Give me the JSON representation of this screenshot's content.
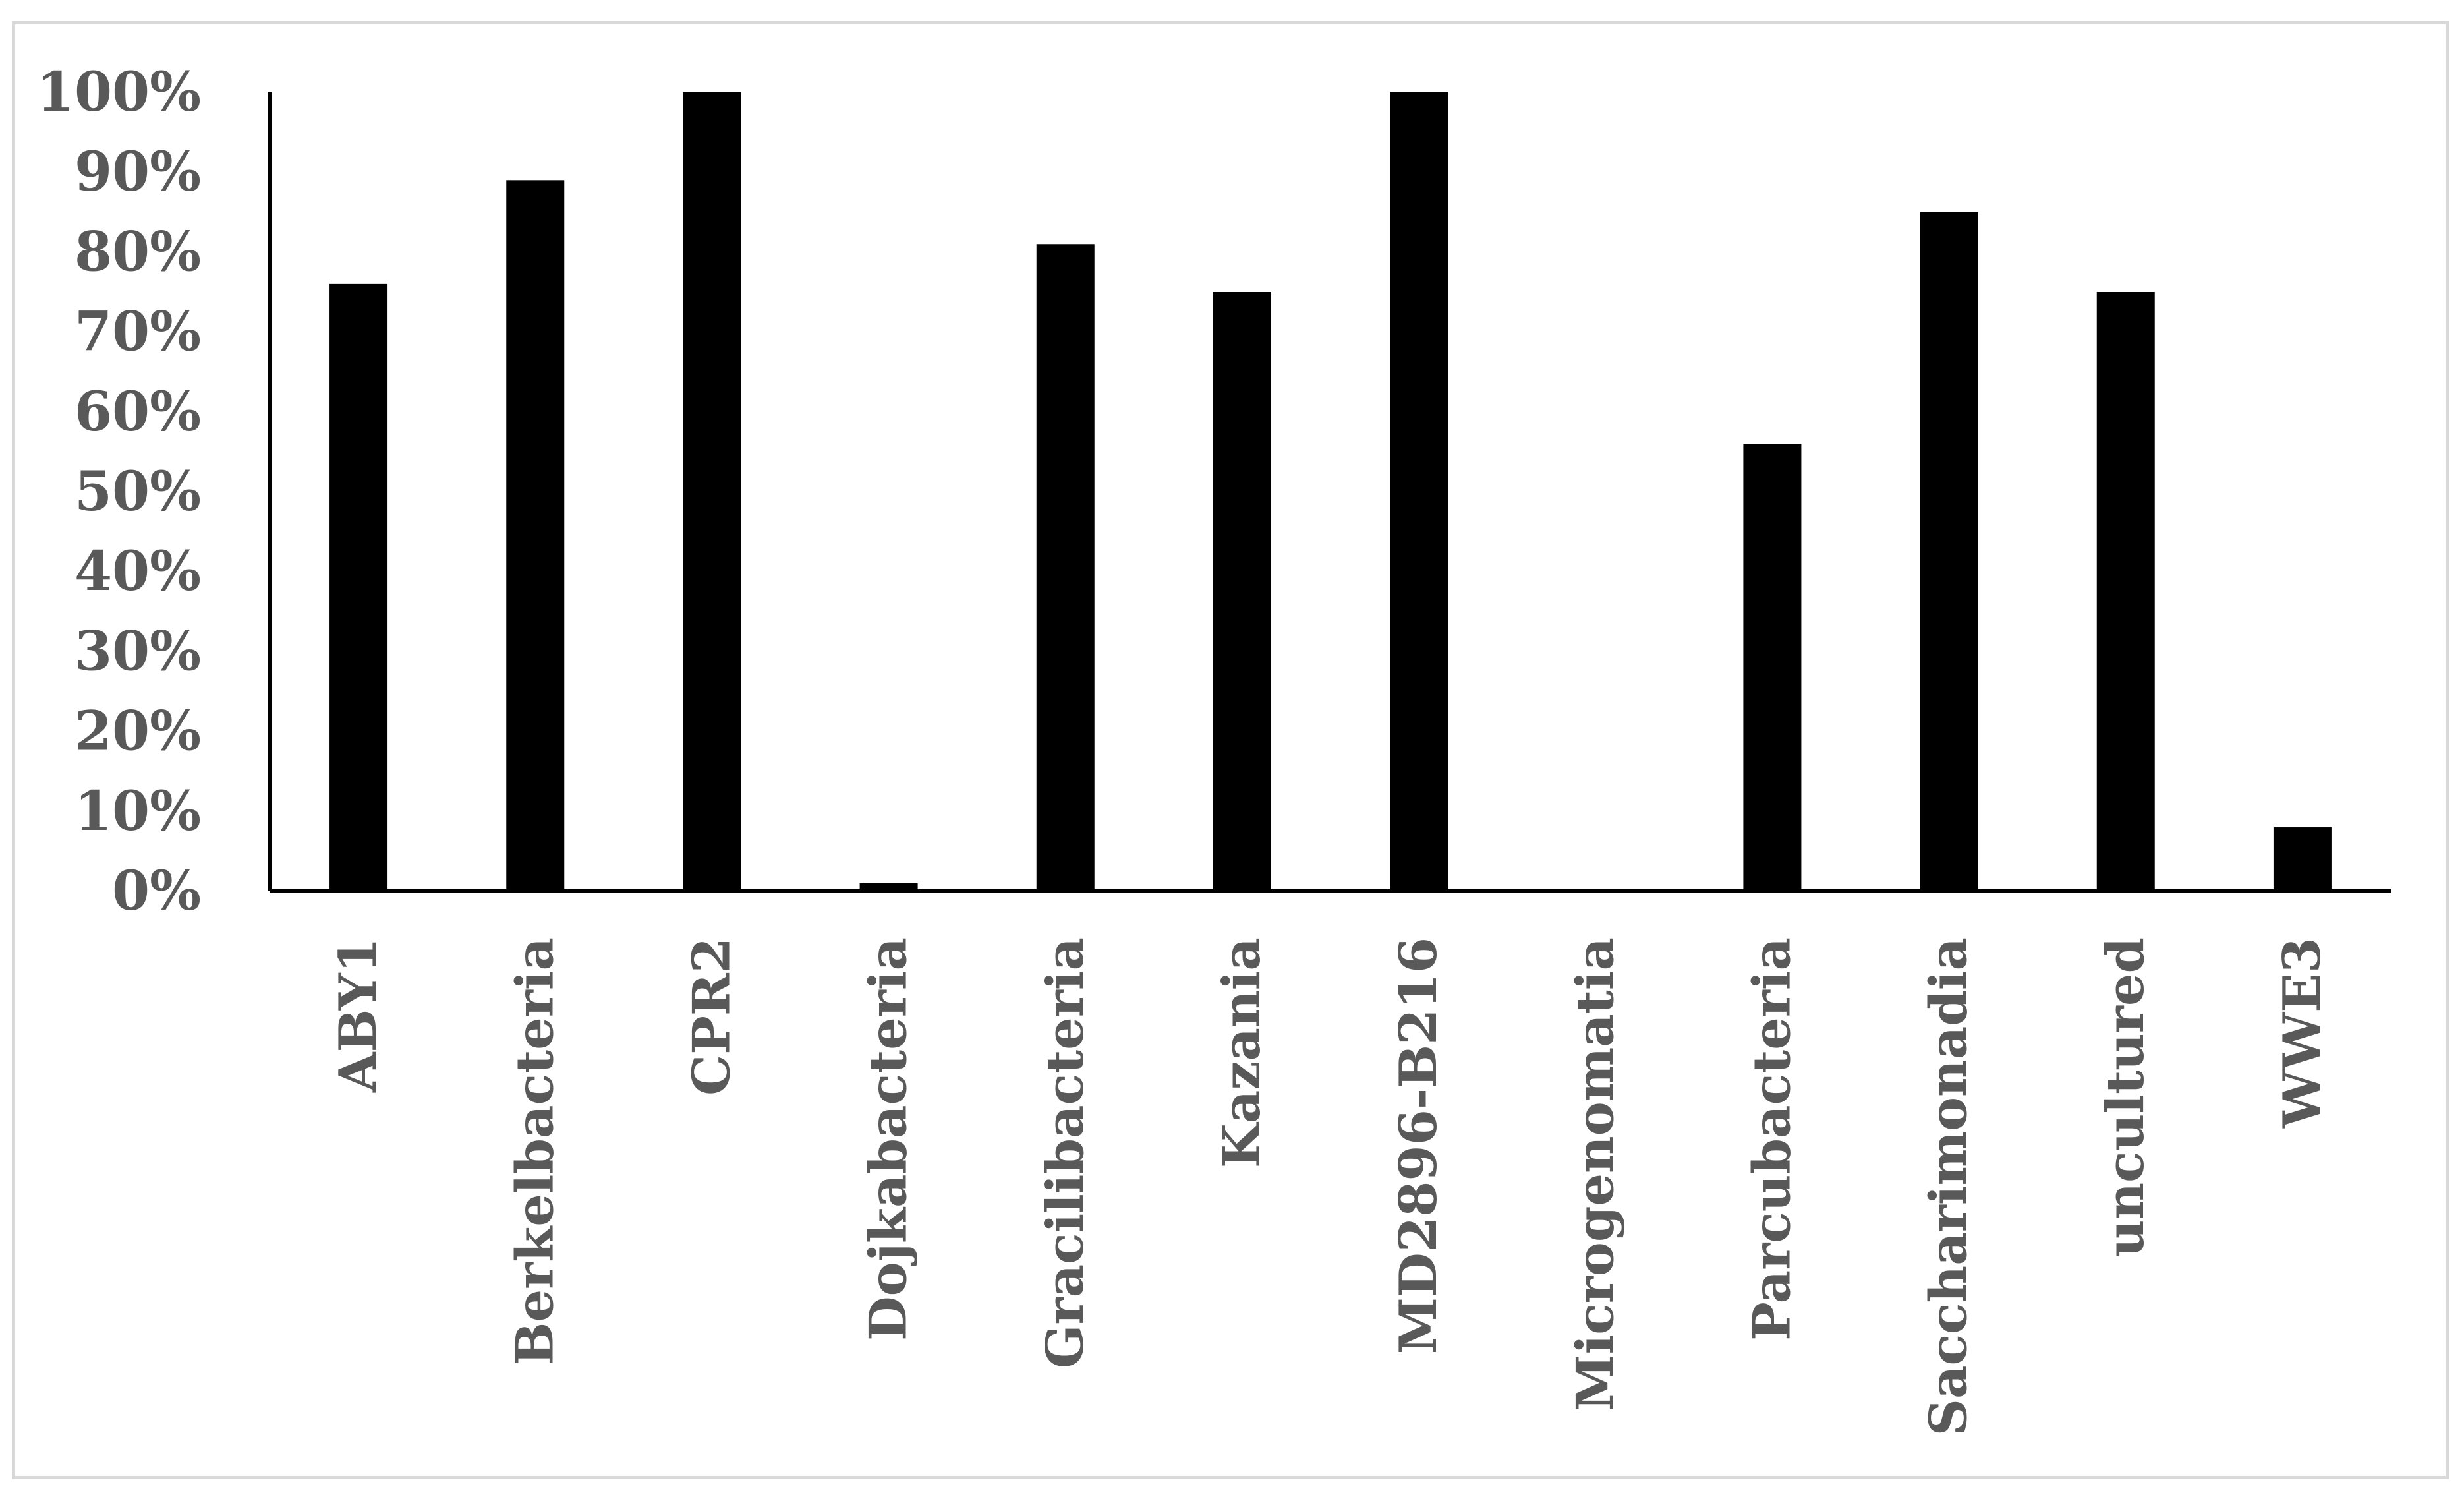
{
  "chart_data": {
    "type": "bar",
    "title": "",
    "xlabel": "",
    "ylabel": "",
    "categories": [
      "ABY1",
      "Berkelbacteria",
      "CPR2",
      "Dojkabacteria",
      "Gracilibacteria",
      "Kazania",
      "MD2896-B216",
      "Microgenomatia",
      "Parcubacteria",
      "Saccharimonadia",
      "uncultured",
      "WWE3"
    ],
    "values": [
      76,
      89,
      100,
      1,
      81,
      75,
      100,
      0,
      56,
      85,
      75,
      8
    ],
    "ylim": [
      0,
      100
    ],
    "yticks": [
      "0%",
      "10%",
      "20%",
      "30%",
      "40%",
      "50%",
      "60%",
      "70%",
      "80%",
      "90%",
      "100%"
    ],
    "grid": false,
    "legend": "none",
    "bar_color": "#000000",
    "axis_color": "#000000",
    "label_color": "#595959"
  }
}
